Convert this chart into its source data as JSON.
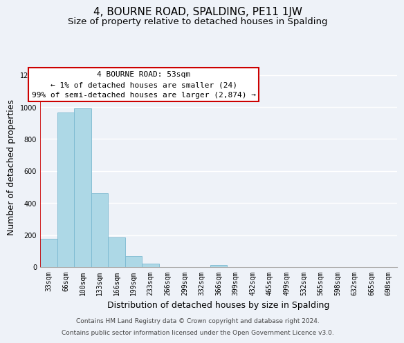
{
  "title": "4, BOURNE ROAD, SPALDING, PE11 1JW",
  "subtitle": "Size of property relative to detached houses in Spalding",
  "xlabel": "Distribution of detached houses by size in Spalding",
  "ylabel": "Number of detached properties",
  "bar_labels": [
    "33sqm",
    "66sqm",
    "100sqm",
    "133sqm",
    "166sqm",
    "199sqm",
    "233sqm",
    "266sqm",
    "299sqm",
    "332sqm",
    "366sqm",
    "399sqm",
    "432sqm",
    "465sqm",
    "499sqm",
    "532sqm",
    "565sqm",
    "598sqm",
    "632sqm",
    "665sqm",
    "698sqm"
  ],
  "bar_values": [
    175,
    965,
    990,
    460,
    185,
    70,
    22,
    0,
    0,
    0,
    15,
    0,
    0,
    0,
    0,
    0,
    0,
    0,
    0,
    0,
    0
  ],
  "bar_color": "#add8e6",
  "bar_edge_color": "#7ab8d0",
  "annotation_line1": "4 BOURNE ROAD: 53sqm",
  "annotation_line2": "← 1% of detached houses are smaller (24)",
  "annotation_line3": "99% of semi-detached houses are larger (2,874) →",
  "annotation_box_facecolor": "#ffffff",
  "annotation_box_edgecolor": "#cc0000",
  "marker_line_color": "#cc0000",
  "ylim": [
    0,
    1250
  ],
  "yticks": [
    0,
    200,
    400,
    600,
    800,
    1000,
    1200
  ],
  "footer_line1": "Contains HM Land Registry data © Crown copyright and database right 2024.",
  "footer_line2": "Contains public sector information licensed under the Open Government Licence v3.0.",
  "background_color": "#eef2f8",
  "grid_color": "#ffffff",
  "title_fontsize": 11,
  "subtitle_fontsize": 9.5,
  "axis_label_fontsize": 9,
  "tick_fontsize": 7,
  "annotation_fontsize": 8,
  "footer_fontsize": 6.5
}
